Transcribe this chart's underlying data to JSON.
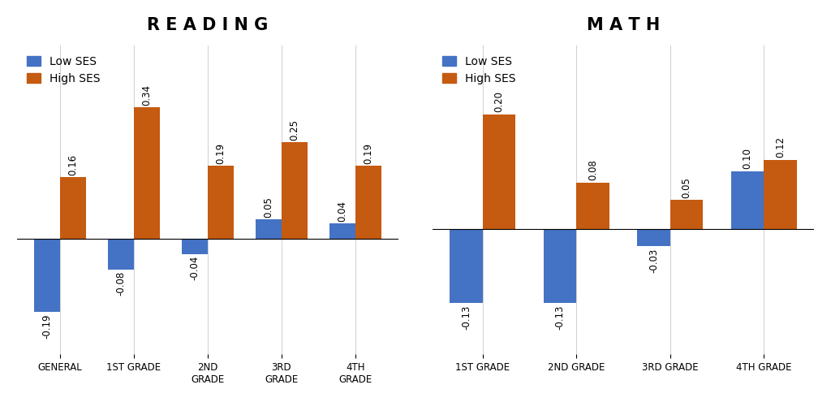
{
  "reading": {
    "title": "R E A D I N G",
    "categories": [
      "GENERAL",
      "1ST GRADE",
      "2ND\nGRADE",
      "3RD\nGRADE",
      "4TH\nGRADE"
    ],
    "low_ses": [
      -0.19,
      -0.08,
      -0.04,
      0.05,
      0.04
    ],
    "high_ses": [
      0.16,
      0.34,
      0.19,
      0.25,
      0.19
    ]
  },
  "math": {
    "title": "M A T H",
    "categories": [
      "1ST GRADE",
      "2ND GRADE",
      "3RD GRADE",
      "4TH GRADE"
    ],
    "low_ses": [
      -0.13,
      -0.13,
      -0.03,
      0.1
    ],
    "high_ses": [
      0.2,
      0.08,
      0.05,
      0.12
    ]
  },
  "low_ses_color": "#4472C4",
  "high_ses_color": "#C55A11",
  "bar_width": 0.35,
  "title_fontsize": 15,
  "tick_fontsize": 8.5,
  "legend_fontsize": 10,
  "value_fontsize": 8.5,
  "background_color": "#FFFFFF",
  "ylim_reading": [
    -0.3,
    0.5
  ],
  "ylim_math": [
    -0.22,
    0.32
  ]
}
